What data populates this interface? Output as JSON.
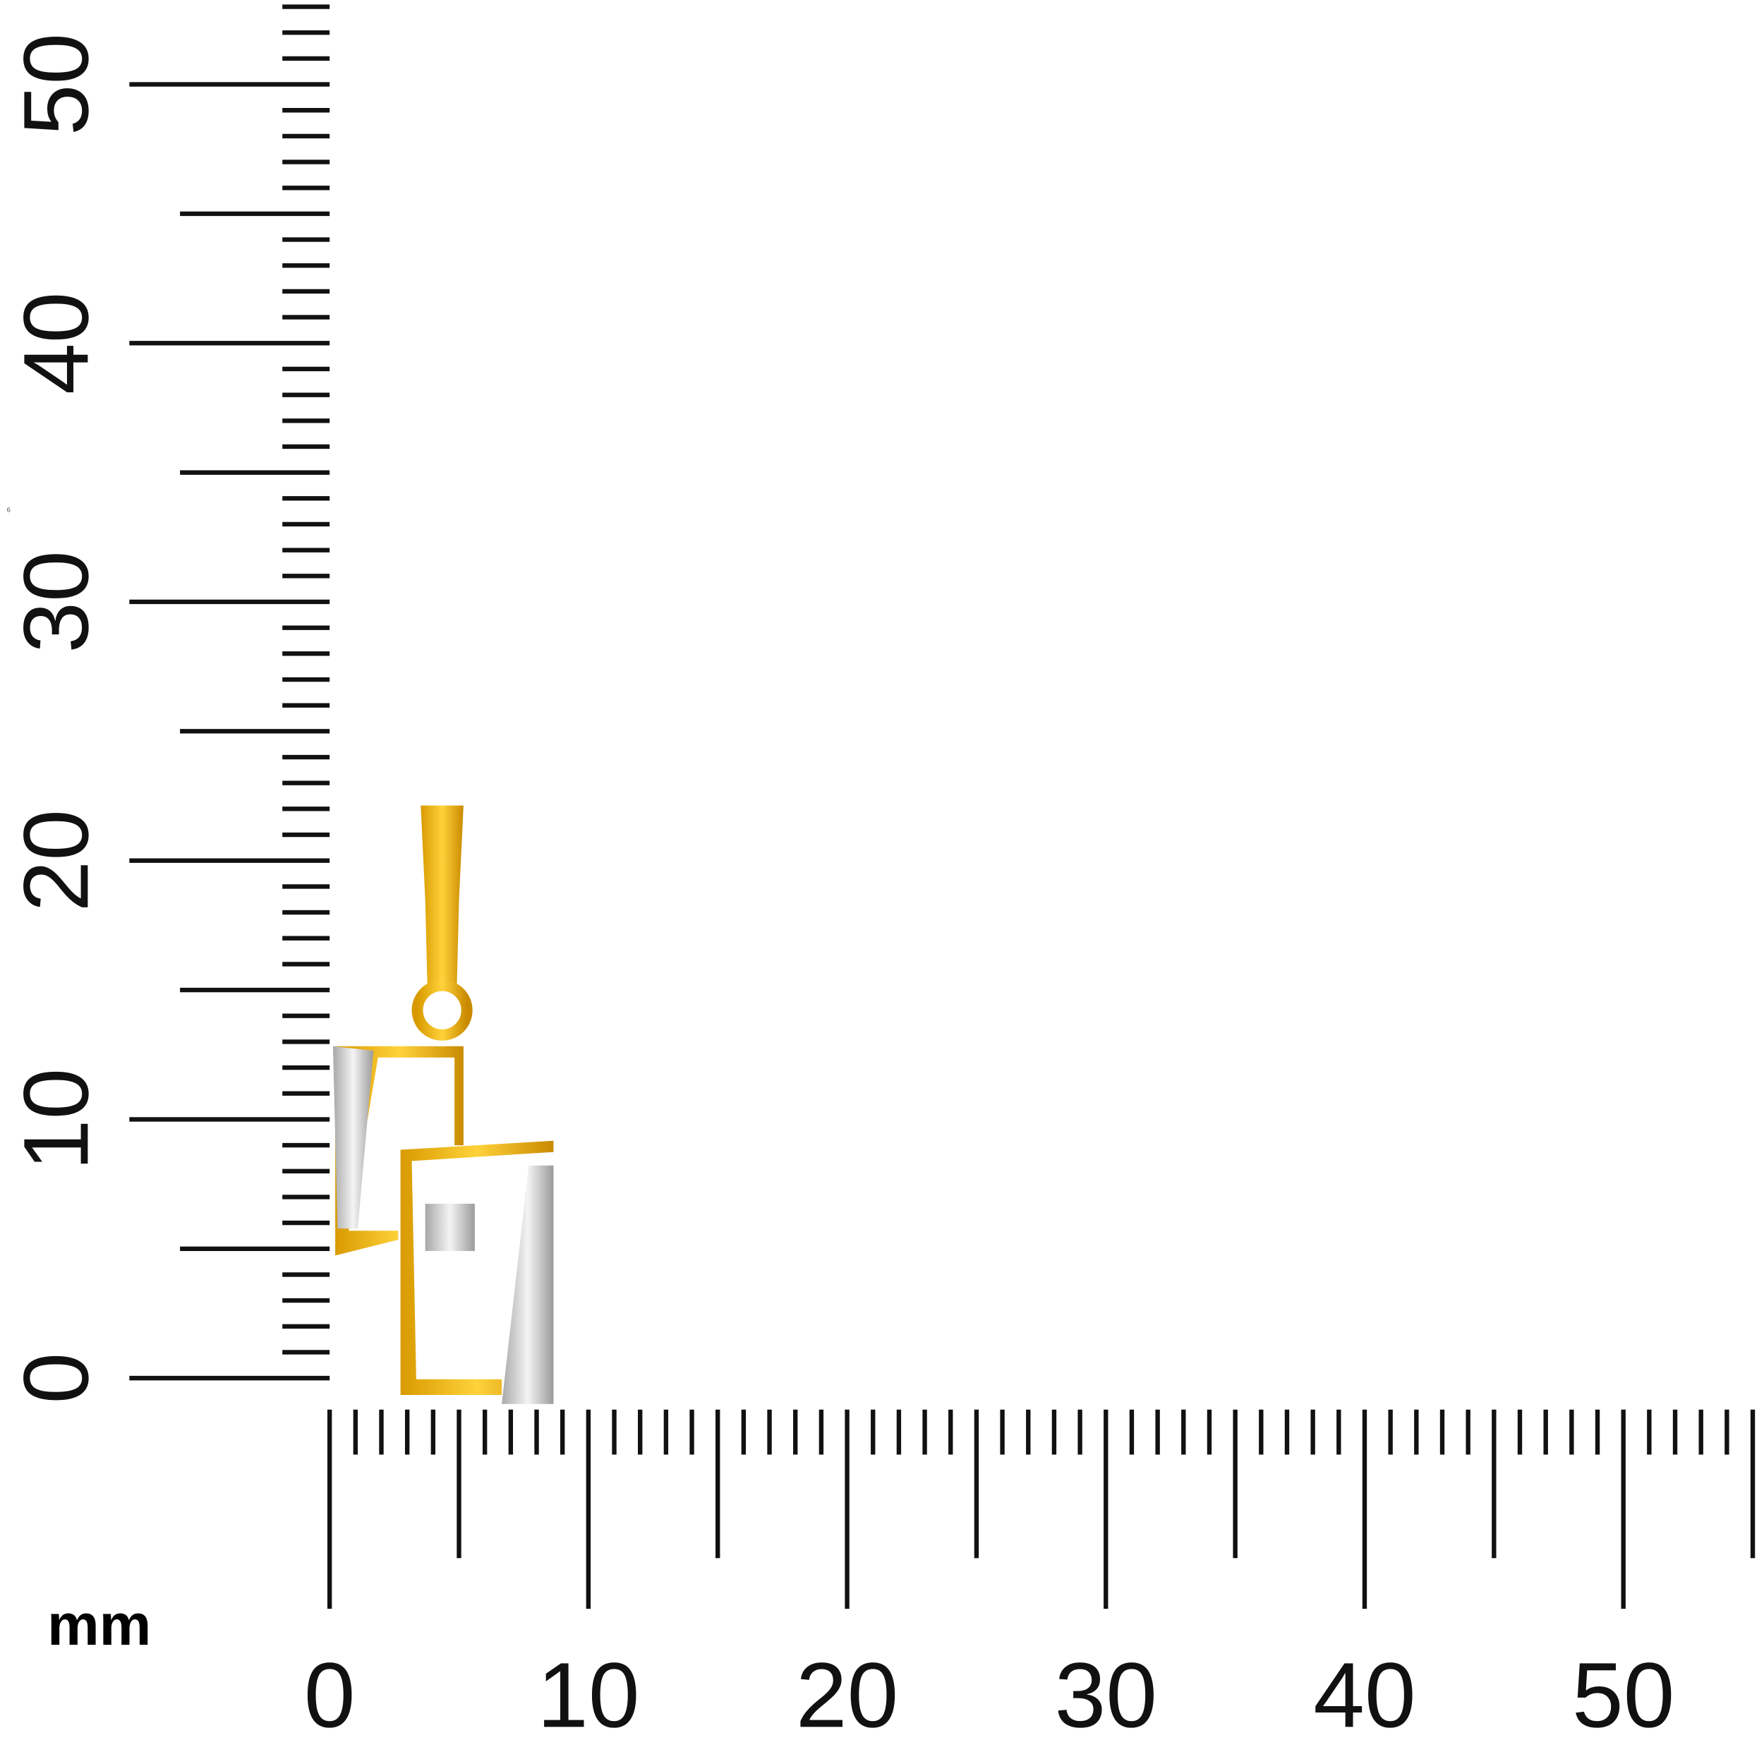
{
  "ruler": {
    "unit": "mm",
    "x_labels": [
      "0",
      "10",
      "20",
      "30",
      "40",
      "50"
    ],
    "y_labels": [
      "0",
      "10",
      "20",
      "30",
      "40",
      "50"
    ],
    "mark": "6"
  }
}
